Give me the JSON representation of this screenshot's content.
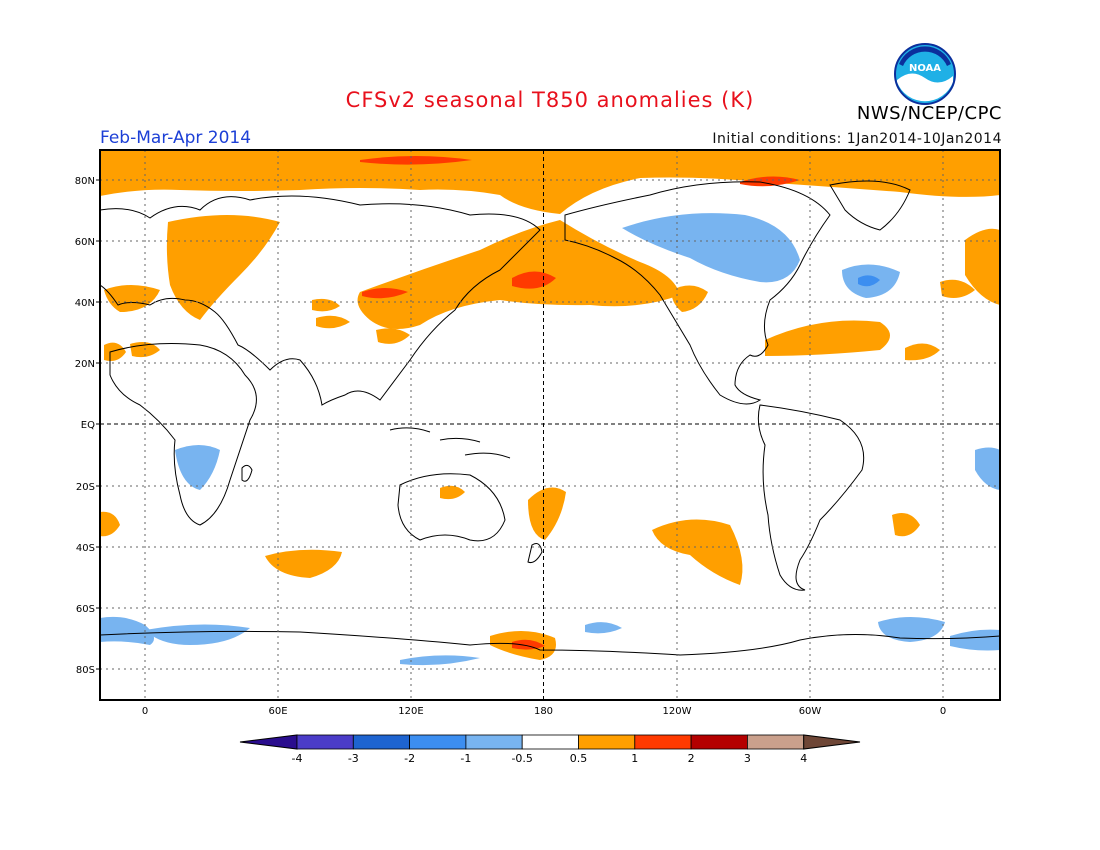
{
  "header": {
    "title": "CFSv2 seasonal T850 anomalies (K)",
    "season": "Feb-Mar-Apr 2014",
    "initial_conditions": "Initial conditions: 1Jan2014-10Jan2014",
    "organization": "NWS/NCEP/CPC",
    "logo_text": "NOAA"
  },
  "map": {
    "lat_labels": [
      "80N",
      "60N",
      "40N",
      "20N",
      "EQ",
      "20S",
      "40S",
      "60S",
      "80S"
    ],
    "lon_labels": [
      "0",
      "60E",
      "120E",
      "180",
      "120W",
      "60W",
      "0"
    ]
  },
  "colorbar": {
    "labels": [
      "-4",
      "-3",
      "-2",
      "-1",
      "-0.5",
      "0.5",
      "1",
      "2",
      "3",
      "4"
    ],
    "colors": [
      "#2a0d8e",
      "#4b3cc8",
      "#1e64d0",
      "#3c8ef0",
      "#78b4f0",
      "#ffffff",
      "#ff9f00",
      "#ff3a00",
      "#b40000",
      "#caa08c",
      "#6e4636"
    ]
  },
  "colors": {
    "title": "#e8101c",
    "season": "#1c3fd6",
    "warm": "#ff9f00",
    "hot": "#ff3a00",
    "cool": "#78b4f0",
    "cold": "#3c8ef0"
  }
}
